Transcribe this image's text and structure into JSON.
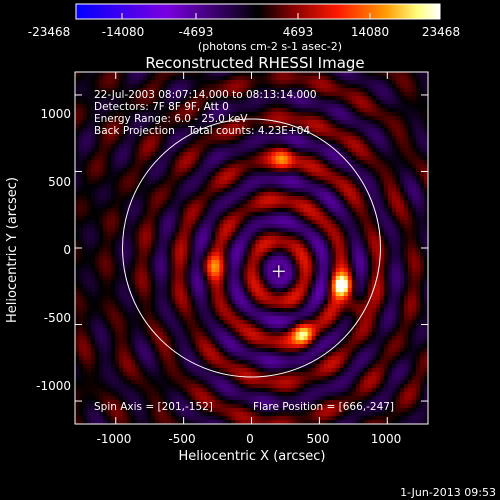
{
  "chart_data": {
    "type": "heatmap",
    "title": "Reconstructed RHESSI Image",
    "xlabel": "Heliocentric X (arcsec)",
    "ylabel": "Heliocentric Y (arcsec)",
    "xlim": [
      -1300,
      1300
    ],
    "ylim": [
      -1150,
      1150
    ],
    "x_ticks": [
      -1000,
      -500,
      0,
      500,
      1000
    ],
    "y_ticks": [
      -1000,
      -500,
      0,
      500,
      1000
    ],
    "colorbar": {
      "ticks": [
        "-23468",
        "-14080",
        "-4693",
        "4693",
        "14080",
        "23468"
      ],
      "range": [
        -23468,
        23468
      ],
      "units": "(photons cm-2 s-1 asec-2)",
      "colors": [
        "#0000ff",
        "#7a00e0",
        "#1a0033",
        "#000000",
        "#8a0000",
        "#ff1a00",
        "#ff9a00",
        "#ffff80",
        "#ffffff"
      ]
    },
    "annotations": [
      "22-Jul-2003 08:07:14.000 to 08:13:14.000",
      "Detectors: 7F 8F 9F, Att 0",
      "Energy Range: 6.0 - 25.0 keV",
      "Back Projection    Total counts: 4.23E+04"
    ],
    "spin_axis": "Spin Axis = [201,-152]",
    "flare_position": "Flare Position = [666,-247]",
    "solar_disk": {
      "center": [
        0,
        0
      ],
      "radius": 950
    },
    "spin_center": [
      201,
      -152
    ],
    "sources": [
      {
        "x": 666,
        "y": -247,
        "strength": 1.0
      },
      {
        "x": 380,
        "y": -560,
        "strength": 0.8
      },
      {
        "x": 760,
        "y": -380,
        "strength": 0.55
      },
      {
        "x": 230,
        "y": 580,
        "strength": 0.5
      },
      {
        "x": -280,
        "y": -120,
        "strength": 0.45
      }
    ]
  },
  "footer_date": "1-Jun-2013 09:53"
}
